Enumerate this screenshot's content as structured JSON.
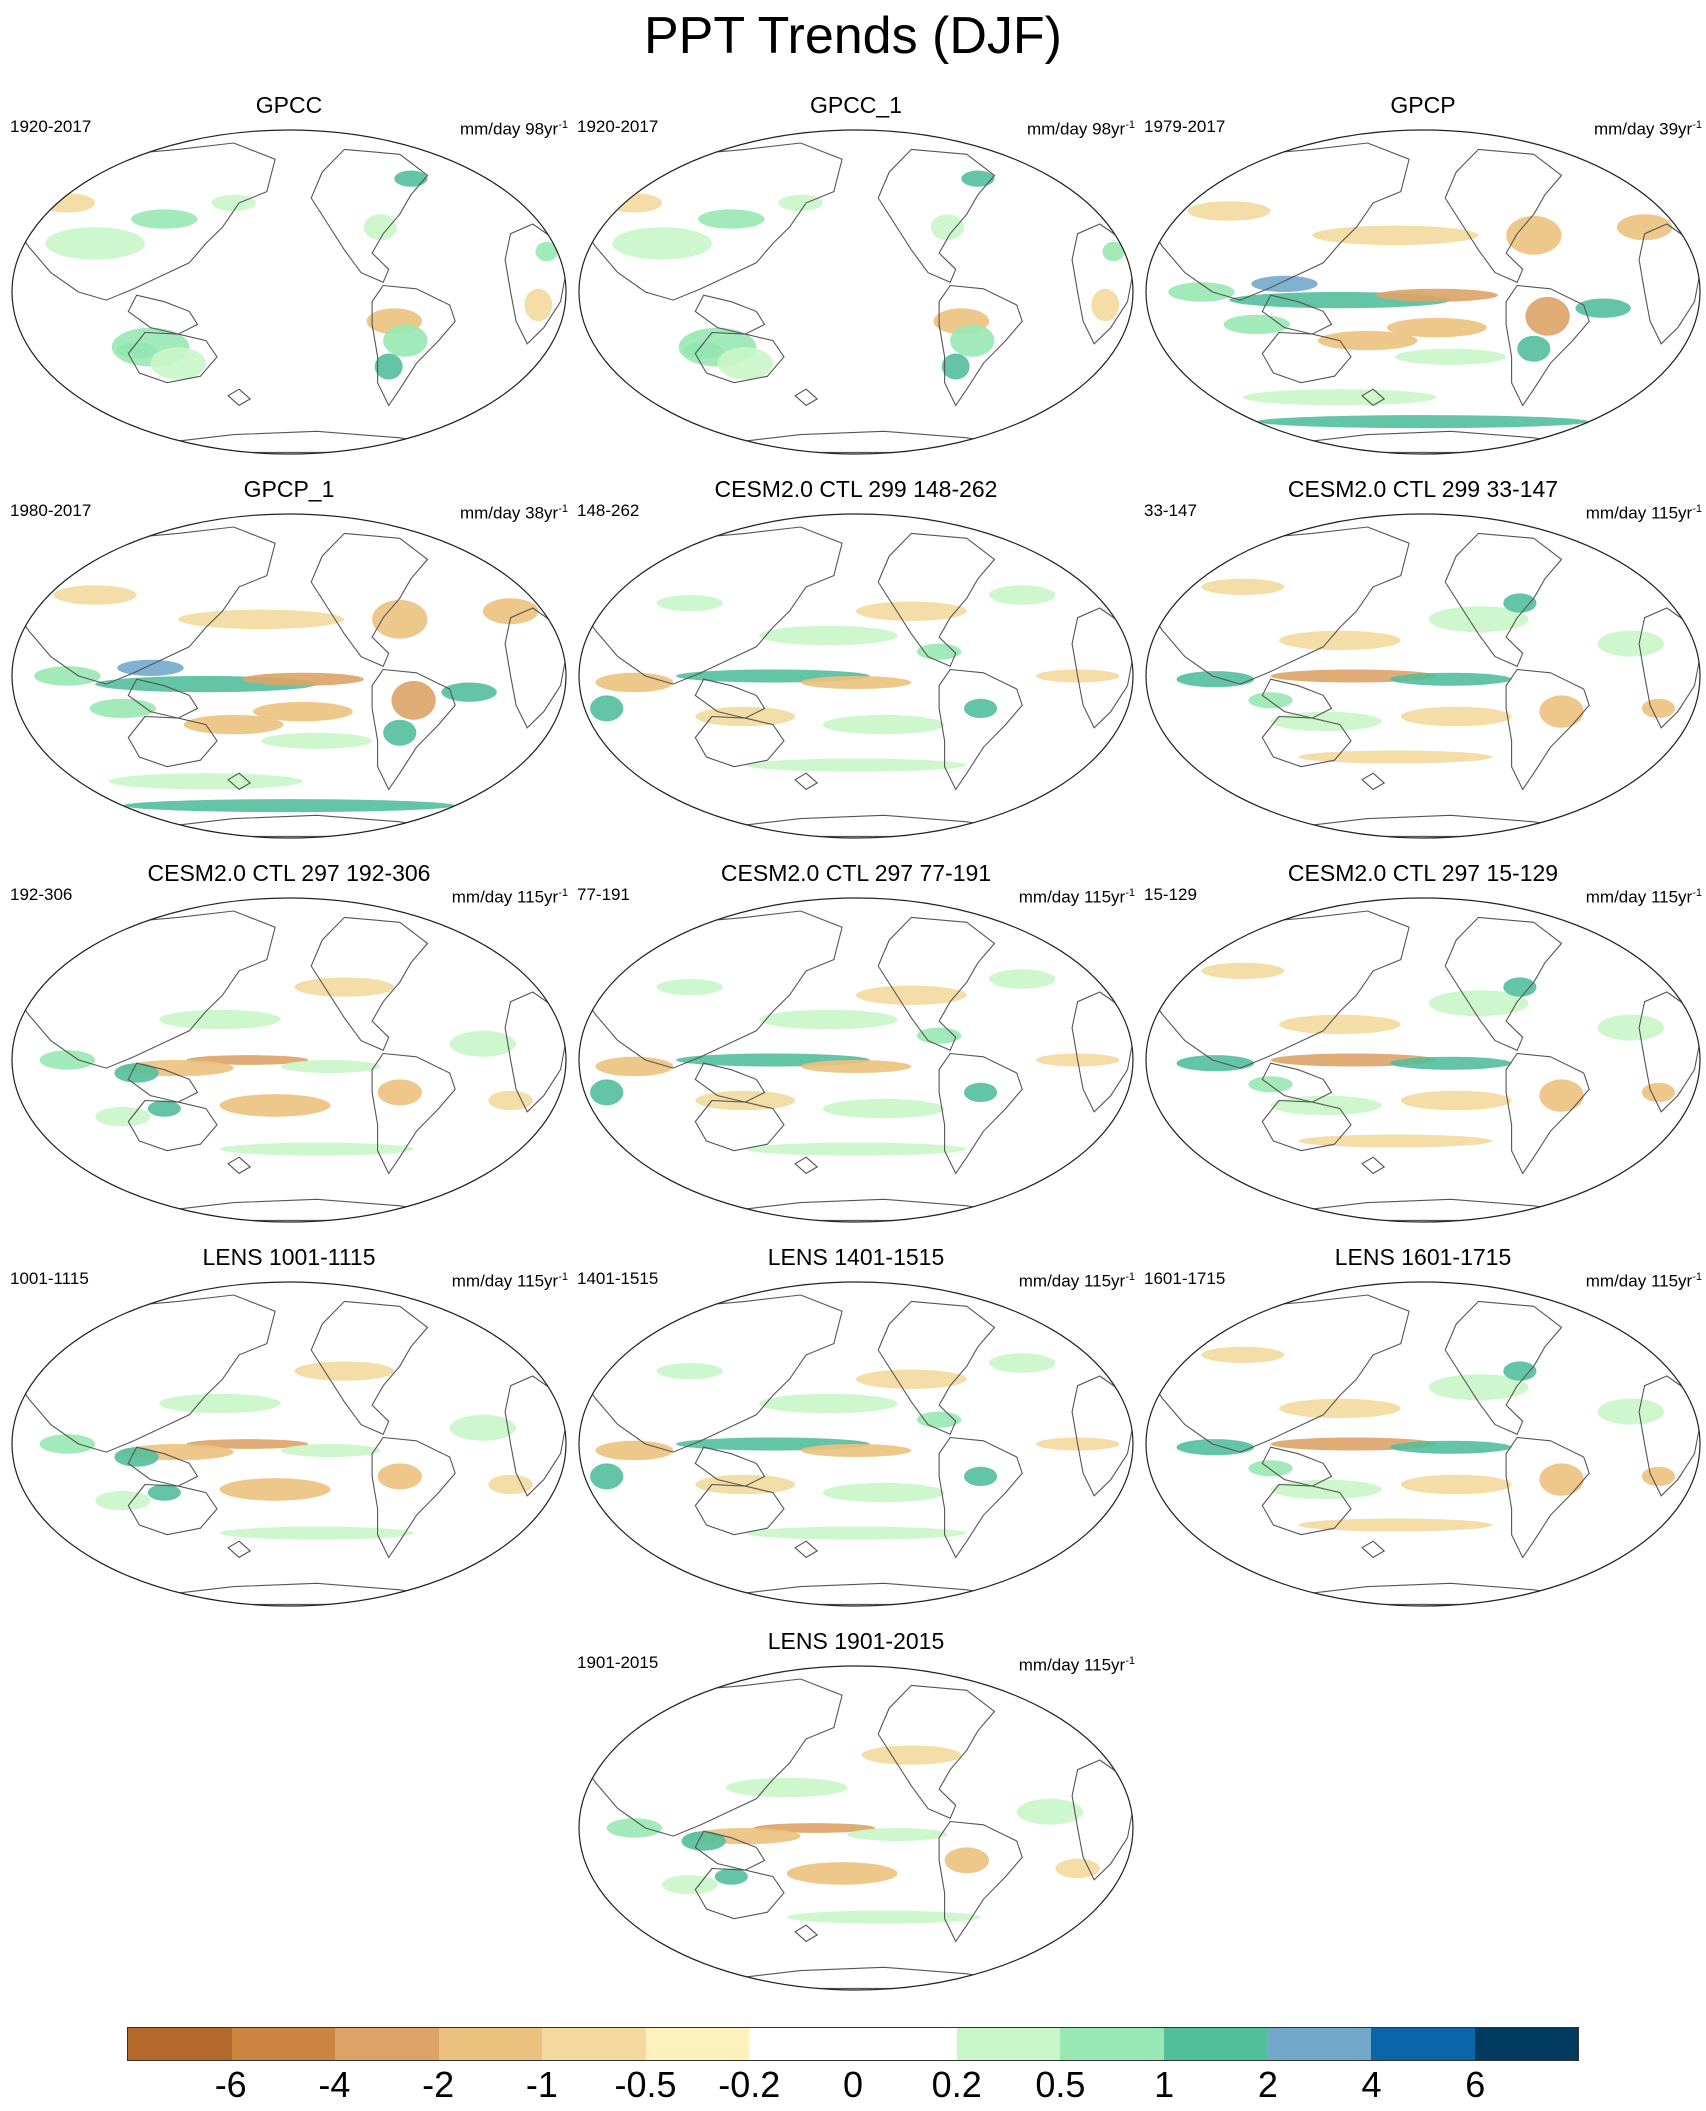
{
  "figure": {
    "title": "PPT Trends (DJF)"
  },
  "panels": [
    {
      "title": "GPCC",
      "period": "1920-2017",
      "units": "mm/day 98yr",
      "units_exp": "-1",
      "pattern": "obs_land"
    },
    {
      "title": "GPCC_1",
      "period": "1920-2017",
      "units": "mm/day 98yr",
      "units_exp": "-1",
      "pattern": "obs_land"
    },
    {
      "title": "GPCP",
      "period": "1979-2017",
      "units": "mm/day 39yr",
      "units_exp": "-1",
      "pattern": "obs_global"
    },
    {
      "title": "GPCP_1",
      "period": "1980-2017",
      "units": "mm/day 38yr",
      "units_exp": "-1",
      "pattern": "obs_global"
    },
    {
      "title": "CESM2.0 CTL 299 148-262",
      "period": "148-262",
      "units": "",
      "units_exp": "",
      "pattern": "model_a"
    },
    {
      "title": "CESM2.0 CTL 299 33-147",
      "period": "33-147",
      "units": "mm/day 115yr",
      "units_exp": "-1",
      "pattern": "model_b"
    },
    {
      "title": "CESM2.0 CTL 297 192-306",
      "period": "192-306",
      "units": "mm/day 115yr",
      "units_exp": "-1",
      "pattern": "model_c"
    },
    {
      "title": "CESM2.0 CTL 297 77-191",
      "period": "77-191",
      "units": "mm/day 115yr",
      "units_exp": "-1",
      "pattern": "model_a"
    },
    {
      "title": "CESM2.0 CTL 297 15-129",
      "period": "15-129",
      "units": "mm/day 115yr",
      "units_exp": "-1",
      "pattern": "model_b"
    },
    {
      "title": "LENS 1001-1115",
      "period": "1001-1115",
      "units": "mm/day 115yr",
      "units_exp": "-1",
      "pattern": "model_c"
    },
    {
      "title": "LENS 1401-1515",
      "period": "1401-1515",
      "units": "mm/day 115yr",
      "units_exp": "-1",
      "pattern": "model_a"
    },
    {
      "title": "LENS 1601-1715",
      "period": "1601-1715",
      "units": "mm/day 115yr",
      "units_exp": "-1",
      "pattern": "model_b"
    },
    {
      "title": "LENS 1901-2015",
      "period": "1901-2015",
      "units": "mm/day 115yr",
      "units_exp": "-1",
      "pattern": "model_c"
    }
  ],
  "colorbar": {
    "labels": [
      "-6",
      "-4",
      "-2",
      "-1",
      "-0.5",
      "-0.2",
      "0",
      "0.2",
      "0.5",
      "1",
      "2",
      "4",
      "6"
    ],
    "colors": [
      "#b5692a",
      "#cc8441",
      "#dca366",
      "#ecc17e",
      "#f3d99d",
      "#fdf2bb",
      "#ffffff",
      "#ffffff",
      "#c9f6c9",
      "#98e8b3",
      "#52bf9b",
      "#72a8cc",
      "#0a66a6",
      "#003a5f"
    ]
  },
  "colors": {
    "brown_strong": "#cc8441",
    "brown": "#dca366",
    "tan": "#ecc17e",
    "tan_light": "#f3d99d",
    "green_light": "#c9f6c9",
    "green": "#98e8b3",
    "teal": "#52bf9b",
    "blue": "#72a8cc",
    "coast": "#555555"
  }
}
